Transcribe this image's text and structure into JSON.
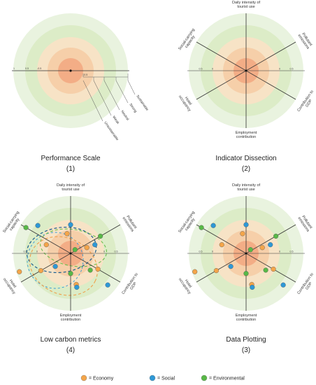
{
  "colors": {
    "ring_outer": "#e9f3df",
    "ring_2": "#dcecc7",
    "ring_3": "#f7e3c6",
    "ring_4": "#f6cfa9",
    "ring_inner": "#f3ad86",
    "economy": "#f4a54a",
    "social": "#2e98d6",
    "environmental": "#58b847",
    "dash_dark": "#1c5e8f",
    "dash_orange": "#f0a04b",
    "dash_green": "#6bbf4e"
  },
  "axis_labels": {
    "top": "Daily intensity of tourist use",
    "top_right": "Pollutant emissions",
    "bottom_right": "Contribution to GDP",
    "bottom": "Employment contribution",
    "bottom_left": "Hotel occupancy",
    "top_left": "Social-carrying capacity"
  },
  "ticks": [
    "1",
    "0.5",
    "0",
    "-0.5",
    "-1",
    "-0.5",
    "0",
    "0.5",
    "1"
  ],
  "scale_labels": [
    "Sustainable",
    "Strong",
    "Neutral",
    "Weak",
    "Unsustainable"
  ],
  "panels": [
    {
      "title": "Performance Scale",
      "number": "(1)"
    },
    {
      "title": "Indicator Dissection",
      "number": "(2)"
    },
    {
      "title": "Low carbon metrics",
      "number": "(4)"
    },
    {
      "title": "Data Plotting",
      "number": "(3)"
    }
  ],
  "legend": [
    {
      "label": "= Economy",
      "color": "economy"
    },
    {
      "label": "= Social",
      "color": "social"
    },
    {
      "label": "= Environmental",
      "color": "environmental"
    }
  ],
  "points": [
    {
      "type": "economy",
      "ax": 0,
      "r": 0.35
    },
    {
      "type": "environmental",
      "ax": 1,
      "r": 0.6
    },
    {
      "type": "economy",
      "ax": 1,
      "r": 0.3
    },
    {
      "type": "environmental",
      "ax": 1,
      "r": 0.1
    },
    {
      "type": "economy",
      "ax": 2,
      "r": 0.55
    },
    {
      "type": "environmental",
      "ax": 2,
      "r": 0.45
    },
    {
      "type": "economy",
      "ax": 3,
      "r": 0.55
    },
    {
      "type": "environmental",
      "ax": 3,
      "r": 0.35
    },
    {
      "type": "economy",
      "ax": 4,
      "r": 0.95
    },
    {
      "type": "social",
      "ax": 4,
      "r": 0.35
    },
    {
      "type": "environmental",
      "ax": 5,
      "r": 0.9
    },
    {
      "type": "social",
      "ax": 5,
      "r": 0.75
    },
    {
      "type": "economy",
      "ax": 5,
      "r": 0.45
    },
    {
      "type": "social",
      "ax": 0,
      "r": 0.5
    },
    {
      "type": "social",
      "ax": 2,
      "r": 0.85
    },
    {
      "type": "social",
      "ax": 3,
      "r": 0.6
    },
    {
      "type": "economy",
      "ax": 4,
      "r": 0.6
    },
    {
      "type": "social",
      "ax": 1,
      "r": 0.45
    }
  ]
}
